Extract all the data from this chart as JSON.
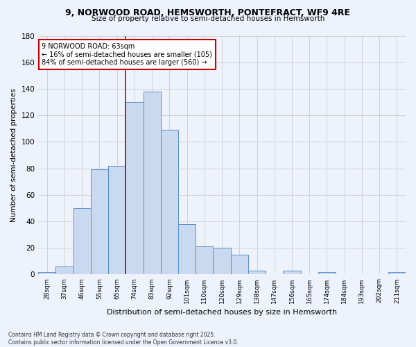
{
  "title_line1": "9, NORWOOD ROAD, HEMSWORTH, PONTEFRACT, WF9 4RE",
  "title_line2": "Size of property relative to semi-detached houses in Hemsworth",
  "xlabel": "Distribution of semi-detached houses by size in Hemsworth",
  "ylabel": "Number of semi-detached properties",
  "bins": [
    "28sqm",
    "37sqm",
    "46sqm",
    "55sqm",
    "65sqm",
    "74sqm",
    "83sqm",
    "92sqm",
    "101sqm",
    "110sqm",
    "120sqm",
    "129sqm",
    "138sqm",
    "147sqm",
    "156sqm",
    "165sqm",
    "174sqm",
    "184sqm",
    "193sqm",
    "202sqm",
    "211sqm"
  ],
  "values": [
    2,
    6,
    50,
    79,
    82,
    130,
    138,
    109,
    38,
    21,
    20,
    15,
    3,
    0,
    3,
    0,
    2,
    0,
    0,
    0,
    2
  ],
  "bar_color": "#c9d9f0",
  "bar_edge_color": "#5b8ecb",
  "property_line_x": 4.5,
  "annotation_text_line1": "9 NORWOOD ROAD: 63sqm",
  "annotation_text_line2": "← 16% of semi-detached houses are smaller (105)",
  "annotation_text_line3": "84% of semi-detached houses are larger (560) →",
  "red_line_color": "#cc0000",
  "annotation_box_color": "#ffffff",
  "annotation_box_edge_color": "#cc0000",
  "ylim": [
    0,
    180
  ],
  "yticks": [
    0,
    20,
    40,
    60,
    80,
    100,
    120,
    140,
    160,
    180
  ],
  "grid_color": "#cccccc",
  "bg_color": "#eef2fb",
  "footer": "Contains HM Land Registry data © Crown copyright and database right 2025.\nContains public sector information licensed under the Open Government Licence v3.0."
}
